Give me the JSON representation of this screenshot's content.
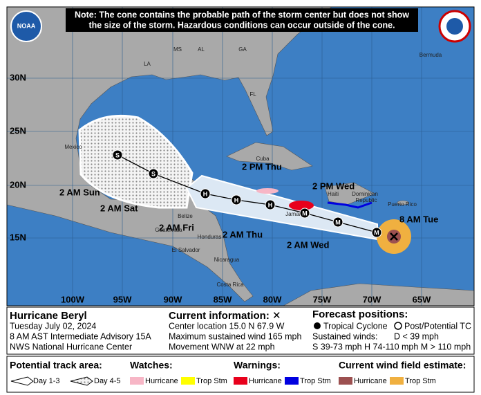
{
  "note": [
    "Note: The cone contains the probable path of the storm center but does not show",
    "the size of the storm. Hazardous conditions can occur outside of the cone."
  ],
  "logos": [
    "NOAA"
  ],
  "map": {
    "latitude_labels": [
      "30N",
      "25N",
      "20N",
      "15N"
    ],
    "longitude_labels": [
      "100W",
      "95W",
      "90W",
      "85W",
      "80W",
      "75W",
      "70W",
      "65W"
    ],
    "places": [
      "LA",
      "MS",
      "AL",
      "GA",
      "FL",
      "Bermuda",
      "Mexico",
      "Cuba",
      "Haiti",
      "Dominican",
      "Republic",
      "Puerto Rico",
      "Jamaica",
      "Belize",
      "Honduras",
      "Guatemala",
      "El Salvador",
      "Nicaragua",
      "Costa Rica"
    ]
  },
  "track": {
    "current_label": "8 AM Tue",
    "points": [
      {
        "symbol": "M"
      },
      {
        "symbol": "M",
        "label": "2 AM Wed"
      },
      {
        "symbol": "M",
        "label": "2 PM Wed"
      },
      {
        "symbol": "H",
        "label": "2 AM Thu"
      },
      {
        "symbol": "H",
        "label": "2 PM Thu"
      },
      {
        "symbol": "H",
        "label": "2 AM Fri"
      },
      {
        "symbol": "S",
        "label": "2 AM Sat"
      },
      {
        "symbol": "S",
        "label": "2 AM Sun"
      }
    ]
  },
  "info": {
    "storm": "Hurricane Beryl",
    "date": "Tuesday July 02, 2024",
    "advisory": "8 AM AST Intermediate Advisory 15A",
    "center": "NWS National Hurricane Center",
    "current_title": "Current information: ✕",
    "current_lines": [
      "Center location 15.0 N 67.9 W",
      "Maximum sustained wind 165 mph",
      "Movement WNW at 22 mph"
    ],
    "forecast_title": "Forecast positions:",
    "tropical_cyclone": "Tropical Cyclone",
    "post_tc": "Post/Potential TC",
    "sustained_winds": "Sustained winds:",
    "wind_d": "D < 39 mph",
    "wind_line": "S 39-73 mph  H 74-110 mph  M > 110 mph"
  },
  "legend": {
    "track_area": {
      "title": "Potential track area:",
      "day13": "Day 1-3",
      "day45": "Day 4-5"
    },
    "watches": {
      "title": "Watches:",
      "hurricane": "Hurricane",
      "trop_stm": "Trop Stm"
    },
    "warnings": {
      "title": "Warnings:",
      "hurricane": "Hurricane",
      "trop_stm": "Trop Stm"
    },
    "wind_field": {
      "title": "Current wind field estimate:",
      "hurricane": "Hurricane",
      "trop_stm": "Trop Stm"
    }
  }
}
